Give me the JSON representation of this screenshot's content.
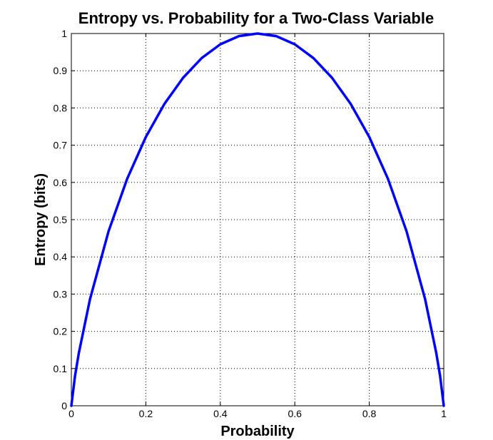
{
  "chart_data": {
    "type": "line",
    "title": "Entropy vs. Probability for a Two-Class Variable",
    "xlabel": "Probability",
    "ylabel": "Entropy (bits)",
    "xlim": [
      0,
      1
    ],
    "ylim": [
      0,
      1
    ],
    "grid": true,
    "grid_style": "dotted",
    "x_ticks": [
      0,
      0.2,
      0.4,
      0.6,
      0.8,
      1
    ],
    "x_tick_labels": [
      "0",
      "0.2",
      "0.4",
      "0.6",
      "0.8",
      "1"
    ],
    "y_ticks": [
      0,
      0.1,
      0.2,
      0.3,
      0.4,
      0.5,
      0.6,
      0.7,
      0.8,
      0.9,
      1
    ],
    "y_tick_labels": [
      "0",
      "0.1",
      "0.2",
      "0.3",
      "0.4",
      "0.5",
      "0.6",
      "0.7",
      "0.8",
      "0.9",
      "1"
    ],
    "series": [
      {
        "color": "#0000ff",
        "x": [
          0,
          0.01,
          0.02,
          0.05,
          0.1,
          0.15,
          0.2,
          0.25,
          0.3,
          0.35,
          0.4,
          0.45,
          0.5,
          0.55,
          0.6,
          0.65,
          0.7,
          0.75,
          0.8,
          0.85,
          0.9,
          0.95,
          0.98,
          0.99,
          1
        ],
        "y": [
          0,
          0.081,
          0.141,
          0.286,
          0.469,
          0.61,
          0.722,
          0.811,
          0.881,
          0.934,
          0.971,
          0.993,
          1,
          0.993,
          0.971,
          0.934,
          0.881,
          0.811,
          0.722,
          0.61,
          0.469,
          0.286,
          0.141,
          0.081,
          0
        ]
      }
    ]
  }
}
